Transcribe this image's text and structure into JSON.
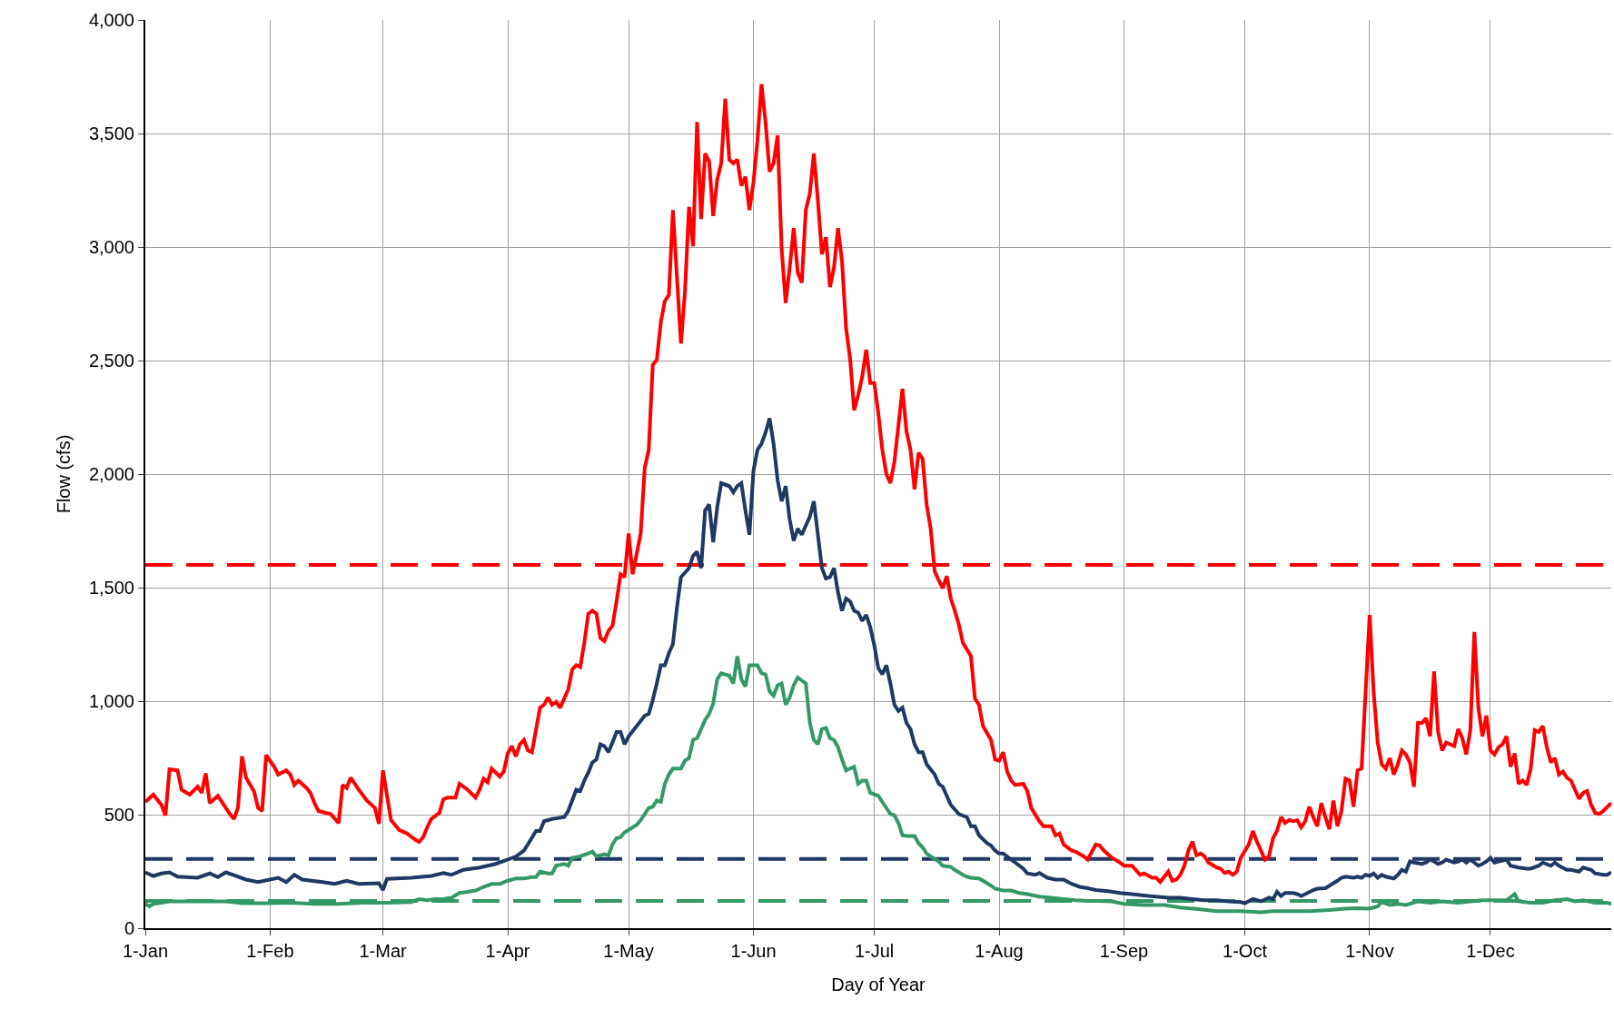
{
  "chart_data": {
    "type": "line",
    "xlabel": "Day of Year",
    "ylabel": "Flow (cfs)",
    "xlim": [
      "--01-01",
      "--12-31"
    ],
    "xticks": [
      {
        "value": "--01-01",
        "label": "1-Jan"
      },
      {
        "value": "--02-01",
        "label": "1-Feb"
      },
      {
        "value": "--03-01",
        "label": "1-Mar"
      },
      {
        "value": "--04-01",
        "label": "1-Apr"
      },
      {
        "value": "--05-01",
        "label": "1-May"
      },
      {
        "value": "--06-01",
        "label": "1-Jun"
      },
      {
        "value": "--07-01",
        "label": "1-Jul"
      },
      {
        "value": "--08-01",
        "label": "1-Aug"
      },
      {
        "value": "--09-01",
        "label": "1-Sep"
      },
      {
        "value": "--10-01",
        "label": "1-Oct"
      },
      {
        "value": "--11-01",
        "label": "1-Nov"
      },
      {
        "value": "--12-01",
        "label": "1-Dec"
      }
    ],
    "ylim": [
      0,
      4000
    ],
    "yticks": [
      0,
      500,
      {
        "value": 1000,
        "label": "1,000"
      },
      {
        "value": 1500,
        "label": "1,500"
      },
      {
        "value": 2000,
        "label": "2,000"
      },
      {
        "value": 2500,
        "label": "2,500"
      },
      {
        "value": 3000,
        "label": "3,000"
      },
      {
        "value": 3500,
        "label": "3,500"
      },
      {
        "value": 4000,
        "label": "4,000"
      }
    ],
    "grid": true,
    "line_style": "solid",
    "marker": "none",
    "ref_lines": [
      {
        "axis": "y",
        "value": 1600,
        "color": "#ff0000",
        "line_style": "dashed"
      },
      {
        "axis": "y",
        "value": 305,
        "color": "#1f3864",
        "line_style": "dashed"
      },
      {
        "axis": "y",
        "value": 120,
        "color": "#339966",
        "line_style": "dashed"
      }
    ],
    "series": [
      {
        "color": "#ff0000",
        "x": [
          "--01-01",
          "--01-03",
          "--01-05",
          "--01-06",
          "--01-07",
          "--01-09",
          "--01-10",
          "--01-12",
          "--01-14",
          "--01-15",
          "--01-16",
          "--01-17",
          "--01-19",
          "--01-22",
          "--01-23",
          "--01-24",
          "--01-25",
          "--01-26",
          "--01-28",
          "--01-29",
          "--01-30",
          "--01-31",
          "--02-02",
          "--02-03",
          "--02-05",
          "--02-06",
          "--02-07",
          "--02-08",
          "--02-10",
          "--02-11",
          "--02-12",
          "--02-13",
          "--02-16",
          "--02-18",
          "--02-19",
          "--02-20",
          "--02-21",
          "--02-23",
          "--02-25",
          "--02-27",
          "--02-28",
          "--03-01",
          "--03-03",
          "--03-04",
          "--03-05",
          "--03-07",
          "--03-09",
          "--03-10",
          "--03-11",
          "--03-12",
          "--03-13",
          "--03-15",
          "--03-16",
          "--03-17",
          "--03-19",
          "--03-20",
          "--03-22",
          "--03-24",
          "--03-25",
          "--03-26",
          "--03-27",
          "--03-28",
          "--03-30",
          "--03-31",
          "--04-01",
          "--04-02",
          "--04-03",
          "--04-04",
          "--04-05",
          "--04-06",
          "--04-07",
          "--04-09",
          "--04-10",
          "--04-11",
          "--04-12",
          "--04-13",
          "--04-14",
          "--04-16",
          "--04-17",
          "--04-18",
          "--04-19",
          "--04-20",
          "--04-21",
          "--04-22",
          "--04-23",
          "--04-24",
          "--04-25",
          "--04-26",
          "--04-27",
          "--04-28",
          "--04-29",
          "--04-30",
          "--05-01",
          "--05-02",
          "--05-04",
          "--05-05",
          "--05-06",
          "--05-07",
          "--05-08",
          "--05-09",
          "--05-10",
          "--05-11",
          "--05-12",
          "--05-14",
          "--05-15",
          "--05-16",
          "--05-17",
          "--05-18",
          "--05-19",
          "--05-20",
          "--05-21",
          "--05-22",
          "--05-23",
          "--05-24",
          "--05-25",
          "--05-26",
          "--05-27",
          "--05-28",
          "--05-29",
          "--05-30",
          "--05-31",
          "--06-01",
          "--06-02",
          "--06-03",
          "--06-04",
          "--06-05",
          "--06-06",
          "--06-07",
          "--06-08",
          "--06-09",
          "--06-10",
          "--06-11",
          "--06-12",
          "--06-13",
          "--06-14",
          "--06-15",
          "--06-16",
          "--06-17",
          "--06-18",
          "--06-19",
          "--06-20",
          "--06-21",
          "--06-22",
          "--06-23",
          "--06-24",
          "--06-25",
          "--06-26",
          "--06-27",
          "--06-28",
          "--06-29",
          "--06-30",
          "--07-01",
          "--07-02",
          "--07-03",
          "--07-04",
          "--07-05",
          "--07-06",
          "--07-07",
          "--07-08",
          "--07-09",
          "--07-10",
          "--07-11",
          "--07-12",
          "--07-13",
          "--07-14",
          "--07-15",
          "--07-16",
          "--07-17",
          "--07-18",
          "--07-19",
          "--07-20",
          "--07-21",
          "--07-22",
          "--07-23",
          "--07-25",
          "--07-26",
          "--07-27",
          "--07-28",
          "--07-30",
          "--07-31",
          "--08-01",
          "--08-02",
          "--08-03",
          "--08-04",
          "--08-05",
          "--08-07",
          "--08-08",
          "--08-09",
          "--08-11",
          "--08-12",
          "--08-14",
          "--08-15",
          "--08-16",
          "--08-17",
          "--08-19",
          "--08-20",
          "--08-22",
          "--08-23",
          "--08-25",
          "--08-26",
          "--08-27",
          "--08-29",
          "--08-31",
          "--09-01",
          "--09-03",
          "--09-05",
          "--09-06",
          "--09-08",
          "--09-09",
          "--09-10",
          "--09-12",
          "--09-13",
          "--09-14",
          "--09-15",
          "--09-16",
          "--09-17",
          "--09-18",
          "--09-19",
          "--09-20",
          "--09-21",
          "--09-22",
          "--09-24",
          "--09-25",
          "--09-26",
          "--09-27",
          "--09-28",
          "--09-29",
          "--09-30",
          "--10-02",
          "--10-03",
          "--10-04",
          "--10-05",
          "--10-06",
          "--10-07",
          "--10-08",
          "--10-09",
          "--10-10",
          "--10-11",
          "--10-12",
          "--10-13",
          "--10-14",
          "--10-15",
          "--10-16",
          "--10-17",
          "--10-18",
          "--10-19",
          "--10-20",
          "--10-21",
          "--10-22",
          "--10-23",
          "--10-24",
          "--10-25",
          "--10-26",
          "--10-27",
          "--10-28",
          "--10-29",
          "--10-30",
          "--11-01",
          "--11-02",
          "--11-03",
          "--11-04",
          "--11-05",
          "--11-06",
          "--11-07",
          "--11-08",
          "--11-09",
          "--11-10",
          "--11-11",
          "--11-12",
          "--11-13",
          "--11-14",
          "--11-15",
          "--11-16",
          "--11-17",
          "--11-18",
          "--11-19",
          "--11-20",
          "--11-21",
          "--11-22",
          "--11-23",
          "--11-24",
          "--11-25",
          "--11-26",
          "--11-27",
          "--11-28",
          "--11-29",
          "--11-30",
          "--12-01",
          "--12-02",
          "--12-03",
          "--12-04",
          "--12-05",
          "--12-06",
          "--12-07",
          "--12-08",
          "--12-09",
          "--12-10",
          "--12-11",
          "--12-12",
          "--12-13",
          "--12-14",
          "--12-15",
          "--12-16",
          "--12-17",
          "--12-18",
          "--12-19",
          "--12-20",
          "--12-21",
          "--12-22",
          "--12-23",
          "--12-24",
          "--12-25",
          "--12-26",
          "--12-27",
          "--12-28",
          "--12-29",
          "--12-31"
        ],
        "values": [
          556,
          588,
          543,
          497,
          700,
          695,
          610,
          588,
          623,
          596,
          682,
          551,
          583,
          503,
          481,
          530,
          757,
          663,
          602,
          530,
          516,
          762,
          711,
          677,
          695,
          677,
          631,
          650,
          618,
          596,
          551,
          516,
          503,
          463,
          631,
          618,
          663,
          610,
          562,
          530,
          460,
          695,
          476,
          455,
          433,
          417,
          390,
          380,
          401,
          444,
          481,
          508,
          567,
          575,
          575,
          636,
          610,
          575,
          610,
          658,
          642,
          703,
          668,
          690,
          770,
          802,
          757,
          810,
          829,
          783,
          775,
          971,
          984,
          1016,
          984,
          997,
          971,
          1051,
          1139,
          1158,
          1150,
          1257,
          1385,
          1398,
          1385,
          1278,
          1265,
          1310,
          1332,
          1439,
          1559,
          1546,
          1738,
          1559,
          1738,
          2027,
          2107,
          2481,
          2503,
          2669,
          2762,
          2789,
          3163,
          2575,
          2803,
          3177,
          3003,
          3551,
          3123,
          3412,
          3377,
          3137,
          3297,
          3369,
          3653,
          3385,
          3369,
          3385,
          3270,
          3310,
          3163,
          3284,
          3471,
          3717,
          3551,
          3332,
          3369,
          3492,
          2990,
          2754,
          2909,
          3083,
          2888,
          2843,
          3163,
          3236,
          3412,
          3204,
          2968,
          3043,
          2824,
          2909,
          3083,
          2936,
          2642,
          2508,
          2281,
          2348,
          2428,
          2548,
          2401,
          2401,
          2268,
          2107,
          2000,
          1960,
          2054,
          2214,
          2375,
          2188,
          2107,
          1933,
          2094,
          2067,
          1866,
          1760,
          1572,
          1532,
          1497,
          1551,
          1452,
          1398,
          1337,
          1257,
          1198,
          1011,
          984,
          890,
          829,
          743,
          738,
          775,
          690,
          650,
          631,
          636,
          604,
          529,
          471,
          449,
          449,
          409,
          417,
          369,
          342,
          337,
          316,
          302,
          369,
          364,
          342,
          310,
          289,
          275,
          275,
          235,
          241,
          222,
          222,
          203,
          249,
          209,
          214,
          235,
          275,
          342,
          382,
          321,
          329,
          316,
          289,
          267,
          262,
          243,
          249,
          235,
          249,
          310,
          369,
          428,
          382,
          342,
          302,
          316,
          396,
          428,
          489,
          463,
          476,
          471,
          476,
          444,
          471,
          535,
          489,
          449,
          551,
          489,
          436,
          562,
          449,
          516,
          658,
          650,
          535,
          695,
          703,
          1380,
          1038,
          818,
          722,
          703,
          749,
          677,
          722,
          783,
          765,
          730,
          623,
          904,
          904,
          925,
          845,
          1131,
          864,
          783,
          818,
          810,
          802,
          877,
          837,
          765,
          872,
          1305,
          971,
          845,
          936,
          783,
          765,
          797,
          810,
          845,
          711,
          770,
          636,
          650,
          631,
          703,
          872,
          864,
          890,
          797,
          730,
          749,
          677,
          690,
          663,
          650,
          610,
          570,
          596,
          604,
          543,
          508,
          503,
          516,
          551
        ]
      },
      {
        "color": "#1f3864",
        "x": [
          "--01-01",
          "--01-03",
          "--01-05",
          "--01-07",
          "--01-09",
          "--01-14",
          "--01-17",
          "--01-19",
          "--01-21",
          "--01-26",
          "--01-29",
          "--02-03",
          "--02-05",
          "--02-07",
          "--02-09",
          "--02-14",
          "--02-17",
          "--02-20",
          "--02-23",
          "--02-28",
          "--03-01",
          "--03-02",
          "--03-08",
          "--03-13",
          "--03-16",
          "--03-18",
          "--03-21",
          "--03-25",
          "--03-29",
          "--04-01",
          "--04-03",
          "--04-05",
          "--04-06",
          "--04-08",
          "--04-09",
          "--04-10",
          "--04-12",
          "--04-15",
          "--04-16",
          "--04-18",
          "--04-19",
          "--04-20",
          "--04-21",
          "--04-22",
          "--04-23",
          "--04-24",
          "--04-25",
          "--04-26",
          "--04-27",
          "--04-28",
          "--04-29",
          "--04-30",
          "--05-01",
          "--05-03",
          "--05-05",
          "--05-06",
          "--05-07",
          "--05-08",
          "--05-09",
          "--05-10",
          "--05-11",
          "--05-12",
          "--05-13",
          "--05-14",
          "--05-16",
          "--05-17",
          "--05-18",
          "--05-19",
          "--05-20",
          "--05-21",
          "--05-22",
          "--05-23",
          "--05-24",
          "--05-26",
          "--05-27",
          "--05-28",
          "--05-29",
          "--05-30",
          "--05-31",
          "--06-01",
          "--06-02",
          "--06-03",
          "--06-04",
          "--06-05",
          "--06-06",
          "--06-07",
          "--06-08",
          "--06-09",
          "--06-10",
          "--06-11",
          "--06-12",
          "--06-13",
          "--06-14",
          "--06-15",
          "--06-16",
          "--06-17",
          "--06-18",
          "--06-19",
          "--06-20",
          "--06-21",
          "--06-22",
          "--06-23",
          "--06-24",
          "--06-25",
          "--06-26",
          "--06-27",
          "--06-28",
          "--06-29",
          "--06-30",
          "--07-01",
          "--07-02",
          "--07-03",
          "--07-04",
          "--07-05",
          "--07-06",
          "--07-07",
          "--07-08",
          "--07-09",
          "--07-10",
          "--07-11",
          "--07-12",
          "--07-13",
          "--07-14",
          "--07-16",
          "--07-17",
          "--07-18",
          "--07-19",
          "--07-20",
          "--07-22",
          "--07-24",
          "--07-25",
          "--07-26",
          "--07-27",
          "--07-29",
          "--07-30",
          "--07-31",
          "--08-01",
          "--08-02",
          "--08-04",
          "--08-05",
          "--08-07",
          "--08-08",
          "--08-10",
          "--08-11",
          "--08-13",
          "--08-15",
          "--08-17",
          "--08-19",
          "--08-21",
          "--08-23",
          "--08-25",
          "--08-28",
          "--08-31",
          "--09-03",
          "--09-06",
          "--09-09",
          "--09-12",
          "--09-15",
          "--09-18",
          "--09-21",
          "--09-24",
          "--09-27",
          "--09-30",
          "--10-01",
          "--10-03",
          "--10-05",
          "--10-07",
          "--10-08",
          "--10-09",
          "--10-10",
          "--10-11",
          "--10-13",
          "--10-14",
          "--10-15",
          "--10-16",
          "--10-18",
          "--10-19",
          "--10-21",
          "--10-22",
          "--10-24",
          "--10-25",
          "--10-26",
          "--10-28",
          "--10-29",
          "--10-30",
          "--10-31",
          "--11-01",
          "--11-02",
          "--11-03",
          "--11-04",
          "--11-05",
          "--11-07",
          "--11-08",
          "--11-09",
          "--11-10",
          "--11-11",
          "--11-12",
          "--11-14",
          "--11-15",
          "--11-16",
          "--11-17",
          "--11-18",
          "--11-19",
          "--11-20",
          "--11-22",
          "--11-23",
          "--11-24",
          "--11-25",
          "--11-26",
          "--11-27",
          "--11-28",
          "--11-29",
          "--11-30",
          "--12-01",
          "--12-02",
          "--12-03",
          "--12-05",
          "--12-06",
          "--12-08",
          "--12-10",
          "--12-11",
          "--12-13",
          "--12-14",
          "--12-16",
          "--12-17",
          "--12-18",
          "--12-20",
          "--12-21",
          "--12-23",
          "--12-24",
          "--12-26",
          "--12-27",
          "--12-29",
          "--12-30",
          "--12-31"
        ],
        "values": [
          246,
          230,
          241,
          246,
          227,
          222,
          241,
          225,
          246,
          214,
          203,
          222,
          203,
          235,
          214,
          203,
          195,
          209,
          195,
          198,
          168,
          217,
          222,
          230,
          243,
          235,
          257,
          267,
          283,
          302,
          316,
          342,
          369,
          428,
          428,
          471,
          481,
          489,
          516,
          610,
          604,
          650,
          685,
          730,
          743,
          810,
          802,
          775,
          818,
          864,
          864,
          810,
          845,
          890,
          936,
          944,
          1005,
          1078,
          1158,
          1158,
          1211,
          1251,
          1412,
          1546,
          1586,
          1640,
          1658,
          1586,
          1840,
          1866,
          1700,
          1853,
          1960,
          1947,
          1920,
          1947,
          1960,
          1840,
          1733,
          2014,
          2107,
          2134,
          2182,
          2246,
          2134,
          1973,
          1880,
          1947,
          1800,
          1706,
          1760,
          1733,
          1773,
          1813,
          1880,
          1733,
          1586,
          1540,
          1546,
          1586,
          1479,
          1398,
          1452,
          1439,
          1398,
          1390,
          1353,
          1380,
          1326,
          1246,
          1145,
          1118,
          1158,
          1078,
          984,
          957,
          971,
          904,
          877,
          810,
          775,
          775,
          722,
          677,
          636,
          623,
          583,
          543,
          503,
          489,
          449,
          449,
          409,
          374,
          364,
          342,
          329,
          329,
          302,
          289,
          262,
          241,
          235,
          243,
          222,
          214,
          214,
          195,
          182,
          176,
          168,
          163,
          155,
          150,
          144,
          139,
          134,
          134,
          128,
          123,
          123,
          118,
          115,
          110,
          128,
          118,
          134,
          128,
          160,
          142,
          155,
          155,
          150,
          142,
          150,
          168,
          174,
          176,
          187,
          209,
          222,
          227,
          222,
          227,
          222,
          235,
          230,
          241,
          222,
          235,
          227,
          219,
          235,
          257,
          249,
          294,
          289,
          283,
          289,
          302,
          294,
          283,
          289,
          302,
          289,
          294,
          302,
          289,
          302,
          289,
          275,
          283,
          294,
          310,
          289,
          294,
          302,
          275,
          267,
          262,
          262,
          275,
          289,
          275,
          289,
          275,
          257,
          257,
          249,
          267,
          257,
          241,
          235,
          235,
          246
        ]
      },
      {
        "color": "#339966",
        "x": [
          "--01-01",
          "--01-02",
          "--01-03",
          "--01-05",
          "--01-07",
          "--01-21",
          "--01-25",
          "--01-31",
          "--02-06",
          "--02-12",
          "--02-18",
          "--02-24",
          "--03-02",
          "--03-08",
          "--03-10",
          "--03-12",
          "--03-14",
          "--03-16",
          "--03-18",
          "--03-20",
          "--03-22",
          "--03-24",
          "--03-26",
          "--03-28",
          "--03-30",
          "--04-01",
          "--04-03",
          "--04-05",
          "--04-07",
          "--04-08",
          "--04-09",
          "--04-11",
          "--04-12",
          "--04-13",
          "--04-15",
          "--04-16",
          "--04-17",
          "--04-19",
          "--04-21",
          "--04-22",
          "--04-23",
          "--04-25",
          "--04-26",
          "--04-27",
          "--04-28",
          "--04-29",
          "--04-30",
          "--05-01",
          "--05-03",
          "--05-04",
          "--05-06",
          "--05-07",
          "--05-08",
          "--05-09",
          "--05-10",
          "--05-11",
          "--05-12",
          "--05-14",
          "--05-15",
          "--05-16",
          "--05-17",
          "--05-18",
          "--05-19",
          "--05-20",
          "--05-21",
          "--05-22",
          "--05-23",
          "--05-24",
          "--05-26",
          "--05-27",
          "--05-28",
          "--05-29",
          "--05-30",
          "--05-31",
          "--06-01",
          "--06-02",
          "--06-03",
          "--06-04",
          "--06-05",
          "--06-06",
          "--06-07",
          "--06-08",
          "--06-09",
          "--06-10",
          "--06-11",
          "--06-12",
          "--06-13",
          "--06-14",
          "--06-15",
          "--06-16",
          "--06-17",
          "--06-18",
          "--06-19",
          "--06-20",
          "--06-21",
          "--06-22",
          "--06-23",
          "--06-24",
          "--06-25",
          "--06-26",
          "--06-27",
          "--06-28",
          "--06-29",
          "--06-30",
          "--07-02",
          "--07-03",
          "--07-04",
          "--07-05",
          "--07-06",
          "--07-07",
          "--07-08",
          "--07-09",
          "--07-11",
          "--07-12",
          "--07-13",
          "--07-14",
          "--07-15",
          "--07-17",
          "--07-18",
          "--07-20",
          "--07-21",
          "--07-23",
          "--07-24",
          "--07-25",
          "--07-27",
          "--07-28",
          "--07-30",
          "--07-31",
          "--08-02",
          "--08-04",
          "--08-06",
          "--08-08",
          "--08-11",
          "--08-14",
          "--08-17",
          "--08-20",
          "--08-23",
          "--08-26",
          "--08-29",
          "--09-01",
          "--09-06",
          "--09-11",
          "--09-15",
          "--09-20",
          "--09-24",
          "--09-27",
          "--09-30",
          "--10-05",
          "--10-08",
          "--10-13",
          "--10-17",
          "--10-22",
          "--10-26",
          "--10-29",
          "--11-01",
          "--11-03",
          "--11-04",
          "--11-06",
          "--11-08",
          "--11-10",
          "--11-13",
          "--11-16",
          "--11-19",
          "--11-23",
          "--11-26",
          "--11-29",
          "--12-02",
          "--12-05",
          "--12-07",
          "--12-08",
          "--12-11",
          "--12-14",
          "--12-17",
          "--12-20",
          "--12-22",
          "--12-24",
          "--12-27",
          "--12-30",
          "--12-31"
        ],
        "values": [
          107,
          96,
          107,
          112,
          118,
          118,
          110,
          110,
          112,
          107,
          107,
          112,
          112,
          115,
          128,
          123,
          128,
          128,
          134,
          155,
          160,
          166,
          182,
          195,
          195,
          209,
          219,
          219,
          225,
          225,
          249,
          241,
          241,
          275,
          283,
          275,
          310,
          316,
          329,
          337,
          316,
          326,
          321,
          369,
          396,
          401,
          422,
          433,
          455,
          476,
          529,
          535,
          562,
          556,
          636,
          677,
          703,
          703,
          738,
          749,
          829,
          837,
          877,
          917,
          944,
          989,
          1096,
          1123,
          1112,
          1078,
          1198,
          1096,
          1064,
          1158,
          1158,
          1158,
          1123,
          1118,
          1043,
          1024,
          1070,
          1078,
          984,
          1016,
          1070,
          1104,
          1091,
          1078,
          904,
          829,
          810,
          877,
          882,
          837,
          829,
          797,
          743,
          695,
          703,
          711,
          636,
          650,
          650,
          596,
          583,
          556,
          529,
          503,
          497,
          463,
          409,
          406,
          406,
          374,
          356,
          329,
          316,
          294,
          275,
          270,
          257,
          235,
          227,
          222,
          219,
          209,
          187,
          174,
          166,
          166,
          155,
          150,
          139,
          134,
          128,
          123,
          120,
          120,
          118,
          107,
          102,
          102,
          91,
          83,
          75,
          75,
          75,
          70,
          75,
          75,
          75,
          80,
          86,
          88,
          86,
          96,
          115,
          102,
          107,
          102,
          118,
          112,
          118,
          112,
          118,
          123,
          123,
          123,
          150,
          118,
          112,
          112,
          123,
          128,
          118,
          123,
          112,
          112,
          107
        ]
      }
    ]
  }
}
